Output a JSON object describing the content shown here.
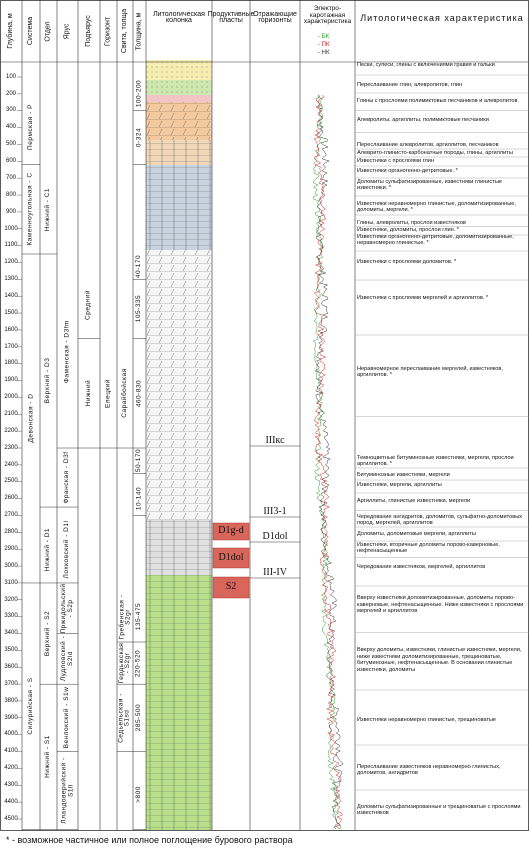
{
  "header": {
    "columns": [
      "Глубина, м",
      "Система",
      "Отдел",
      "Ярус",
      "Подъярус",
      "Горизонт",
      "Свита, толща",
      "Толщина, м",
      "Литологическая колонка",
      "Продуктивные пласты",
      "Отражающие горизонты",
      "Электро-каротажная характеристика",
      "Литологическая характеристика"
    ],
    "log_legend": [
      "- БК",
      "- ПК",
      "- НК"
    ]
  },
  "depth_labels": [
    100,
    200,
    300,
    400,
    500,
    600,
    700,
    800,
    900,
    1000,
    1100,
    1200,
    1300,
    1400,
    1500,
    1600,
    1700,
    1800,
    1900,
    2000,
    2100,
    2200,
    2300,
    2400,
    2500,
    2600,
    2700,
    2800,
    2900,
    3000,
    3100,
    3200,
    3300,
    3400,
    3500,
    3600,
    3700,
    3800,
    3900,
    4000,
    4100,
    4200,
    4300,
    4400,
    4500
  ],
  "systems": [
    "Пермская - P",
    "Каменноугольная - C",
    "Девонская - D",
    "Силурийская - S"
  ],
  "series": [
    "Нижний - C1",
    "Верхний - D3",
    "Нижний - D1",
    "Верхний - S2",
    "Нижний - S1"
  ],
  "stages": [
    "Фаменская - D3fm",
    "Франская - D3f",
    "Лохковский - D1l",
    "Пржидольский - S2p",
    "Лудловский - S2ld",
    "Венлокский - S1w",
    "Лландоверийский - S1ll"
  ],
  "substages": [
    "Средний",
    "Нижний"
  ],
  "horizons": [
    "Елецкий"
  ],
  "suites": [
    "Сарайбойская",
    "Гребенская - S2gr",
    "Гердьюская - S2gr",
    "Седьельская - S1sd"
  ],
  "thickness": [
    "100-200",
    "0-324",
    "40-170",
    "105-335",
    "460-830",
    "50-170",
    "10-140",
    "135-475",
    "220-520",
    "285-500",
    ">800"
  ],
  "productive_layers": [
    "D1g-d",
    "D1dol",
    "S2"
  ],
  "reflecting_horizons": [
    "IIIкс",
    "III3-1",
    "D1dol",
    "III-IV"
  ],
  "descriptions": [
    "Пески, супеси, глины с включениями гравия и гальки",
    "Переслаивание глин, алевролитов, глин",
    "Глины с прослоями полимиктовых песчаников и алевролитов",
    "Алевролиты, аргиллиты, полимиктовые песчаники",
    "Переслаивание алевролитов, аргиллитов, песчаников",
    "Алеврито-глинисто-карбонатные породы, глины, аргиллиты",
    "Известняки с прослоями глин",
    "Известняки органогенно-детритовые. *",
    "Доломиты сульфатизированные, известняки глинистые известняки. *",
    "Известняки неравномерно глинистые, доломитизированные, доломиты, мергели. *",
    "Глины, алевролиты, прослои известняков",
    "Известняки, доломиты, прослои глин. *",
    "Известняки органогенно-детритовые, доломитизированные, неравномерно глинистые. *",
    "Известняки с прослоями доломитов. *",
    "Известняки с прослоями мергелей и аргиллитов. *",
    "Неравномерное переслаивание мергелей, известняков, аргиллитов. *",
    "Темноцветные битуминозные известняки, мергели, прослои аргиллитов. *",
    "Битуминозные известняки, мергели",
    "Известняки, мергели, аргиллиты",
    "Аргиллиты, глинистые известняки, мергели",
    "Чередование ангидритов, доломитов, сульфатно-доломитовых пород, мергелей, аргиллитов",
    "Доломиты, доломитовые мергели, аргиллиты",
    "Известняки, вторичные доломиты порово-каверновые, нефтенасыщенные",
    "Чередование известняков, мергелей, аргиллитов",
    "Вверху известняки доломитизированные, доломиты порово-каверновые, нефтенасыщенные. Ниже известняки с прослоями мергелей и аргиллитов",
    "Вверху доломиты, известняки, глинистые известняки, мергели, ниже известняки доломитизированные, трещиноватые, битуминозные, нефтенасыщенные. В основании глинистые известняки, доломиты",
    "Известняки неравномерно глинистые, трещиноватые",
    "Переслаивание известняков неравномерно глинистых, доломитов, ангидритов",
    "Доломиты сульфатизированные и трещиноватые с прослоями известняков"
  ],
  "footnote": "* - возможное частичное или полное поглощение бурового раствора"
}
